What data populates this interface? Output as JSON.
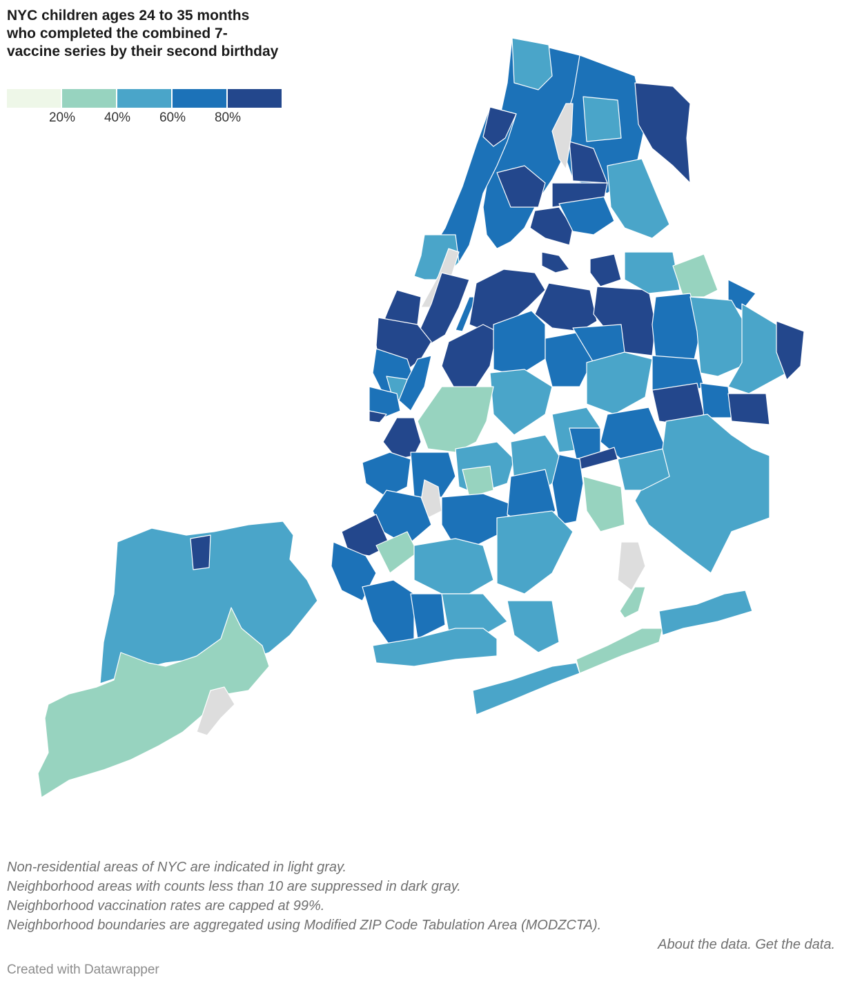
{
  "title": "NYC children ages 24 to 35 months who completed the combined 7-vaccine series by their second birthday",
  "legend": {
    "colors": [
      "#eef7e8",
      "#97d3bf",
      "#4aa5c9",
      "#1c72b8",
      "#23478c"
    ],
    "tick_labels": [
      "20%",
      "40%",
      "60%",
      "80%"
    ]
  },
  "map_colors": {
    "non_residential": "#dddddd",
    "border": "#ffffff"
  },
  "notes": [
    "Non-residential areas of NYC are indicated in light gray.",
    "Neighborhood areas with counts less than 10 are suppressed in dark gray.",
    "Neighborhood vaccination rates are capped at 99%.",
    "Neighborhood boundaries are aggregated using Modified ZIP Code Tabulation Area (MODZCTA)."
  ],
  "links": {
    "about": "About the data.",
    "get": "Get the data."
  },
  "credit": "Created with Datawrapper"
}
